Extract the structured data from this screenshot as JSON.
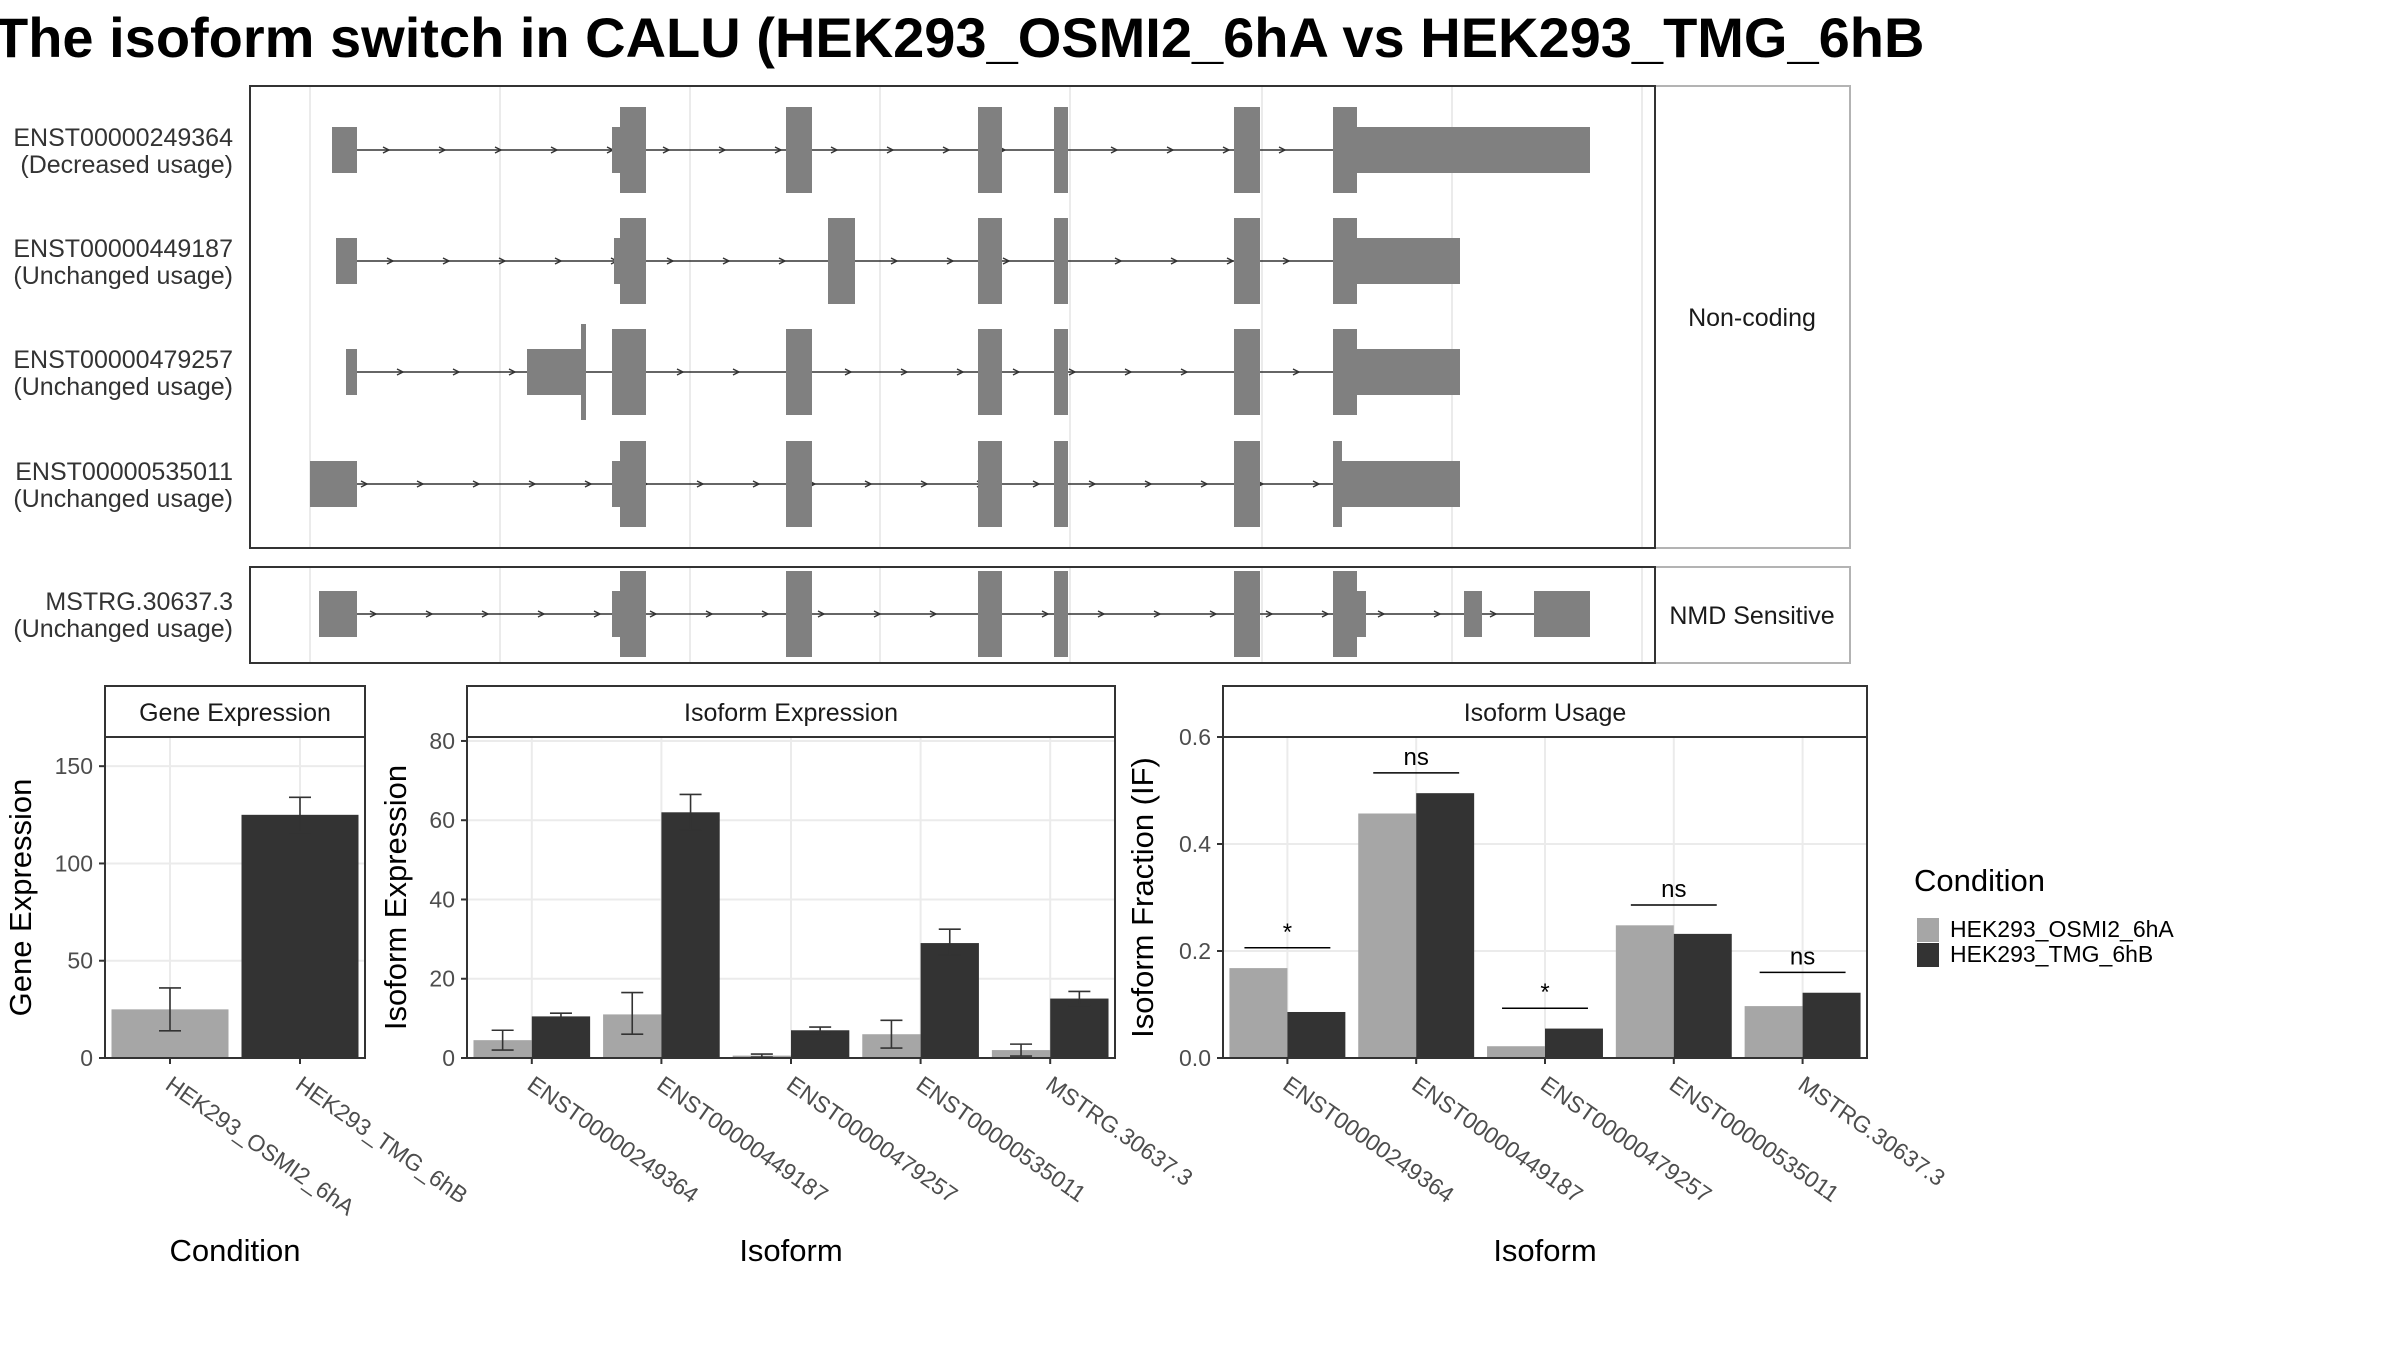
{
  "title": "The isoform switch in CALU (HEK293_OSMI2_6hA vs HEK293_TMG_6hB",
  "chart_data": [
    {
      "type": "gene-structure",
      "panel": "transcripts",
      "groups": [
        {
          "label": "Non-coding",
          "transcripts": [
            {
              "id": "ENST00000249364",
              "usage": "(Decreased usage)"
            },
            {
              "id": "ENST00000449187",
              "usage": "(Unchanged usage)"
            },
            {
              "id": "ENST00000479257",
              "usage": "(Unchanged usage)"
            },
            {
              "id": "ENST00000535011",
              "usage": "(Unchanged usage)"
            }
          ]
        },
        {
          "label": "NMD Sensitive",
          "transcripts": [
            {
              "id": "MSTRG.30637.3",
              "usage": "(Unchanged usage)"
            }
          ]
        }
      ]
    },
    {
      "type": "bar",
      "strip": "Gene Expression",
      "xlabel": "Condition",
      "ylabel": "Gene Expression",
      "ylim": [
        0,
        165
      ],
      "yticks": [
        0,
        50,
        100,
        150
      ],
      "categories": [
        "HEK293_OSMI2_6hA",
        "HEK293_TMG_6hB"
      ],
      "values": [
        25,
        125
      ],
      "errors": [
        [
          14,
          36
        ],
        [
          116,
          134
        ]
      ]
    },
    {
      "type": "bar",
      "strip": "Isoform Expression",
      "xlabel": "Isoform",
      "ylabel": "Isoform Expression",
      "ylim": [
        0,
        81
      ],
      "yticks": [
        0,
        20,
        40,
        60,
        80
      ],
      "categories": [
        "ENST00000249364",
        "ENST00000449187",
        "ENST00000479257",
        "ENST00000535011",
        "MSTRG.30637.3"
      ],
      "series": [
        {
          "name": "HEK293_OSMI2_6hA",
          "values": [
            4.5,
            11.0,
            0.6,
            6.0,
            2.0
          ],
          "errors": [
            [
              2.0,
              7.0
            ],
            [
              6.0,
              16.5
            ],
            [
              0.2,
              1.0
            ],
            [
              2.5,
              9.5
            ],
            [
              0.5,
              3.5
            ]
          ]
        },
        {
          "name": "HEK293_TMG_6hB",
          "values": [
            10.5,
            62.0,
            7.0,
            29.0,
            15.0
          ],
          "errors": [
            [
              9.8,
              11.3
            ],
            [
              57.5,
              66.5
            ],
            [
              6.2,
              7.8
            ],
            [
              26.0,
              32.5
            ],
            [
              13.3,
              16.8
            ]
          ]
        }
      ]
    },
    {
      "type": "bar",
      "strip": "Isoform Usage",
      "xlabel": "Isoform",
      "ylabel": "Isoform Fraction (IF)",
      "ylim": [
        0,
        0.6
      ],
      "yticks": [
        "0.0",
        "0.2",
        "0.4",
        "0.6"
      ],
      "categories": [
        "ENST00000249364",
        "ENST00000449187",
        "ENST00000479257",
        "ENST00000535011",
        "MSTRG.30637.3"
      ],
      "series": [
        {
          "name": "HEK293_OSMI2_6hA",
          "values": [
            0.168,
            0.457,
            0.022,
            0.248,
            0.097
          ]
        },
        {
          "name": "HEK293_TMG_6hB",
          "values": [
            0.086,
            0.495,
            0.055,
            0.232,
            0.122
          ]
        }
      ],
      "significance": [
        "*",
        "ns",
        "*",
        "ns",
        "ns"
      ]
    }
  ],
  "legend": {
    "title": "Condition",
    "items": [
      {
        "label": "HEK293_OSMI2_6hA",
        "color": "#a6a6a6"
      },
      {
        "label": "HEK293_TMG_6hB",
        "color": "#333333"
      }
    ]
  },
  "colors": {
    "exon": "#808080",
    "intron": "#333333",
    "grid": "#ebebeb",
    "strip_bg": "#ffffff",
    "panel_border": "#333333"
  }
}
